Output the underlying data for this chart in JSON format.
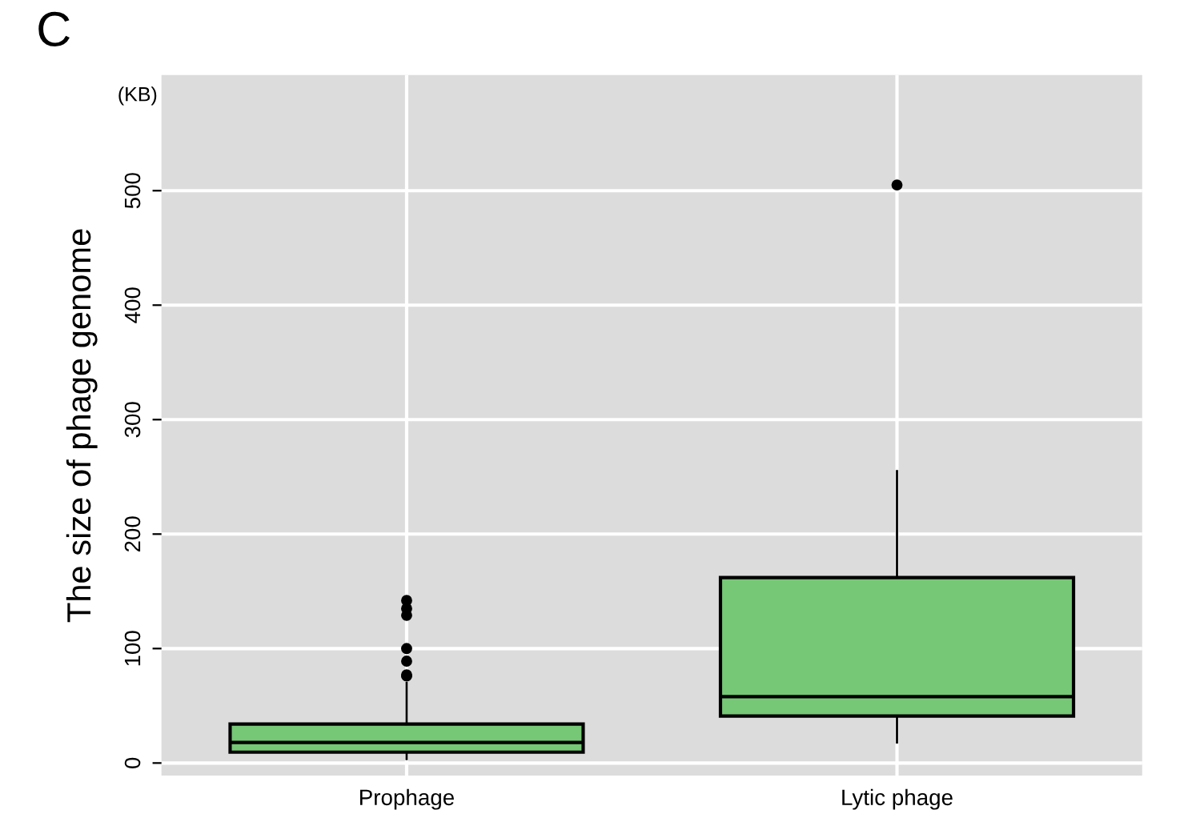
{
  "chart_data": {
    "type": "box",
    "ylabel": "The size of phage genome",
    "annotations": [
      "C",
      "(KB)"
    ],
    "categories": [
      "Prophage",
      "Lytic phage"
    ],
    "boxes": [
      {
        "low": 3.5,
        "q1": 9.5,
        "median": 18,
        "q3": 34,
        "high": 70,
        "outliers": [
          76,
          77,
          89,
          100,
          129,
          135,
          142
        ]
      },
      {
        "low": 18,
        "q1": 41,
        "median": 58,
        "q3": 162,
        "high": 255,
        "outliers": [
          505
        ]
      }
    ],
    "color": "#76c776",
    "ylim": [
      -11,
      601
    ],
    "yticks": [
      0,
      100,
      200,
      300,
      400,
      500
    ],
    "grid": true,
    "legend": false
  }
}
